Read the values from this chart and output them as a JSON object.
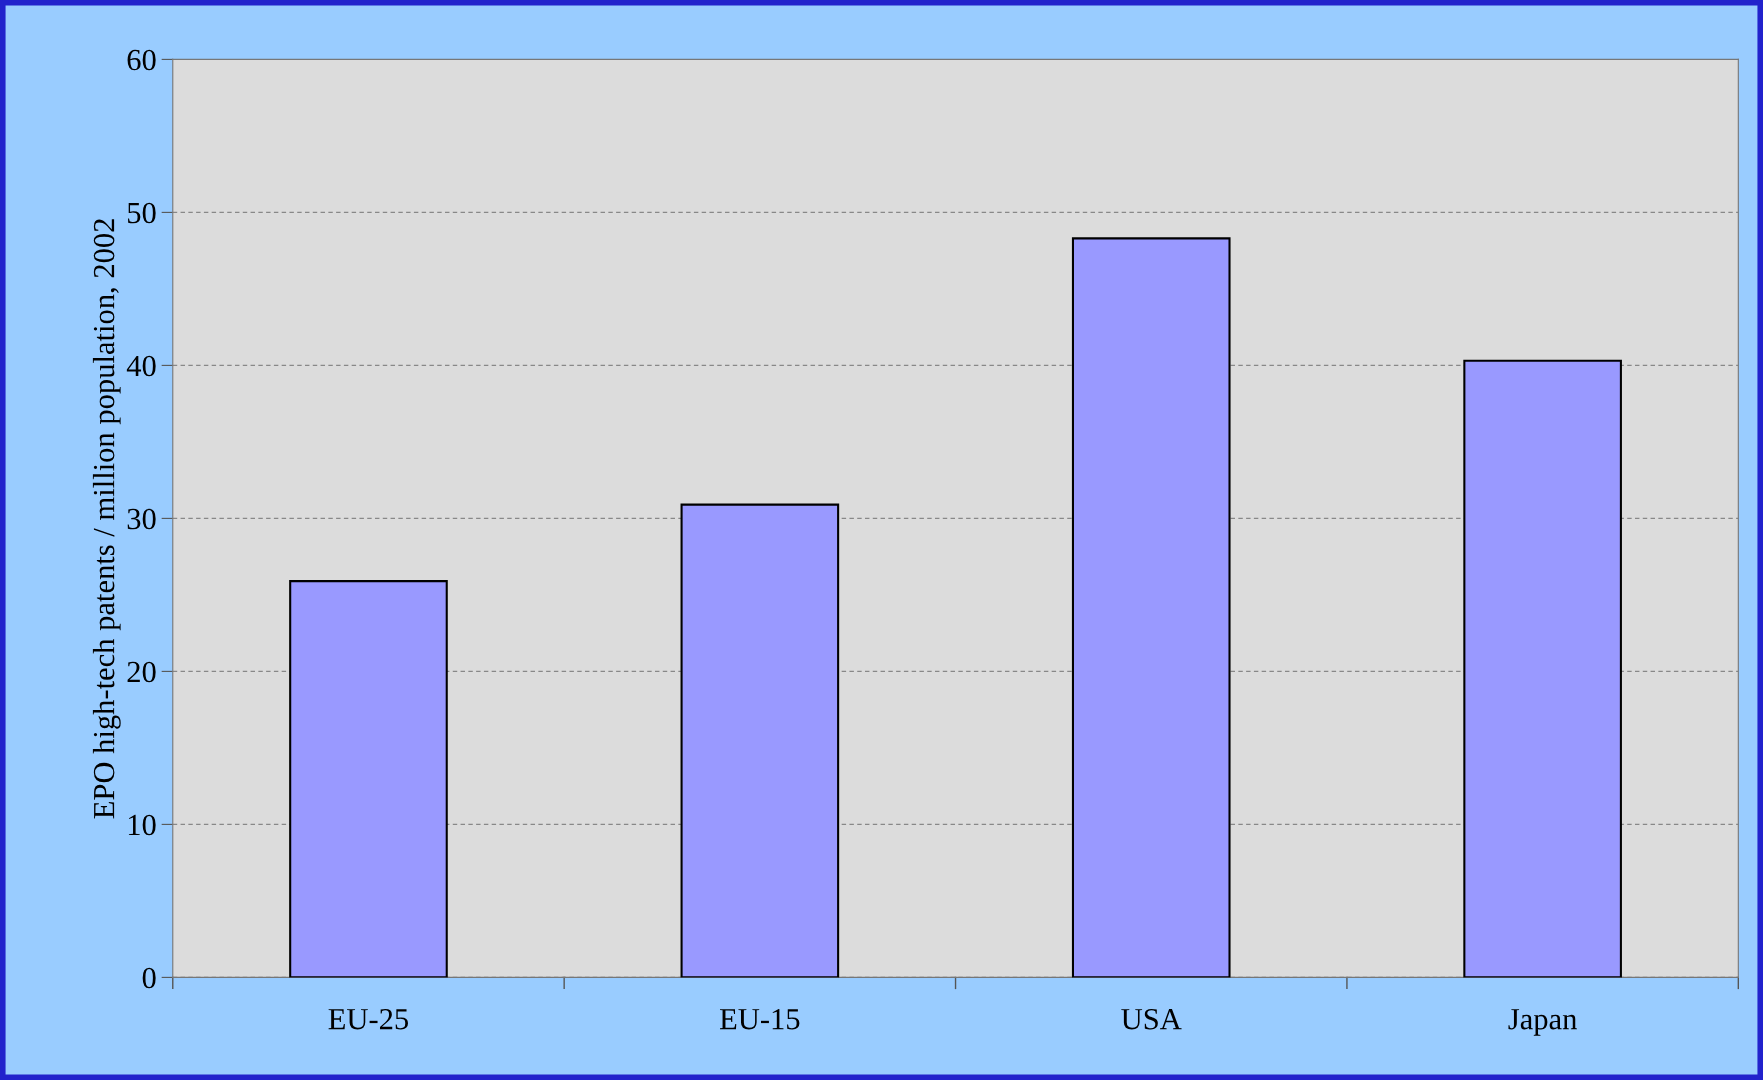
{
  "chart_data": {
    "type": "bar",
    "ylabel": "EPO high-tech patents / million population, 2002",
    "categories": [
      "EU-25",
      "EU-15",
      "USA",
      "Japan"
    ],
    "values": [
      25.9,
      30.9,
      48.3,
      40.3
    ],
    "color": "#9999ff",
    "ylim": [
      0,
      60
    ],
    "yticks": [
      0,
      10,
      20,
      30,
      40,
      50,
      60
    ],
    "grid": "y"
  }
}
